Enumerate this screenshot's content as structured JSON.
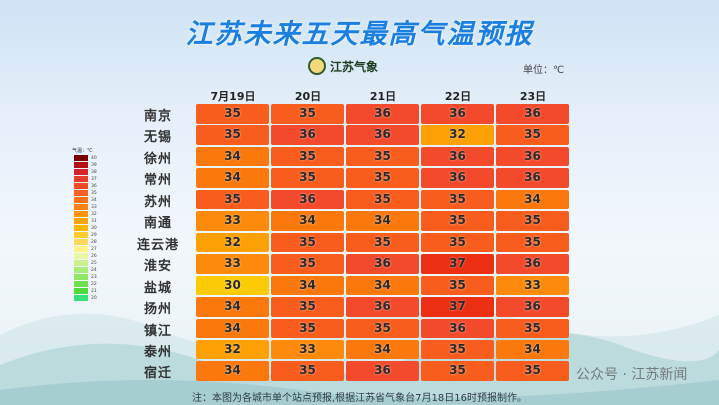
{
  "title": "江苏未来五天最高气温预报",
  "logo_text": "江苏气象",
  "unit": "单位：℃",
  "legend": {
    "title": "气温：℃",
    "labels": [
      "40",
      "39",
      "38",
      "37",
      "36",
      "35",
      "34",
      "33",
      "32",
      "31",
      "30",
      "29",
      "28",
      "27",
      "26",
      "25",
      "24",
      "23",
      "22",
      "21",
      "20"
    ],
    "colors": [
      "#7a0000",
      "#b50f16",
      "#d6222a",
      "#e83a2a",
      "#f04a25",
      "#f76020",
      "#fa7118",
      "#fb8212",
      "#fd920c",
      "#fea508",
      "#ffb800",
      "#ffcc30",
      "#ffd860",
      "#fff38a",
      "#e8f7a0",
      "#c9f28e",
      "#aaee7a",
      "#8ee866",
      "#6de04f",
      "#4ed93c",
      "#36e07a"
    ]
  },
  "columns": [
    "7月19日",
    "20日",
    "21日",
    "22日",
    "23日"
  ],
  "rows": [
    {
      "city": "南京",
      "values": [
        35,
        35,
        36,
        36,
        36
      ]
    },
    {
      "city": "无锡",
      "values": [
        35,
        36,
        36,
        32,
        35
      ]
    },
    {
      "city": "徐州",
      "values": [
        34,
        35,
        35,
        36,
        36
      ]
    },
    {
      "city": "常州",
      "values": [
        34,
        35,
        35,
        36,
        36
      ]
    },
    {
      "city": "苏州",
      "values": [
        35,
        36,
        35,
        35,
        34
      ]
    },
    {
      "city": "南通",
      "values": [
        33,
        34,
        34,
        35,
        35
      ]
    },
    {
      "city": "连云港",
      "values": [
        32,
        35,
        35,
        35,
        35
      ]
    },
    {
      "city": "淮安",
      "values": [
        33,
        35,
        36,
        37,
        36
      ]
    },
    {
      "city": "盐城",
      "values": [
        30,
        34,
        34,
        35,
        33
      ]
    },
    {
      "city": "扬州",
      "values": [
        34,
        35,
        36,
        37,
        36
      ]
    },
    {
      "city": "镇江",
      "values": [
        34,
        35,
        35,
        36,
        35
      ]
    },
    {
      "city": "泰州",
      "values": [
        32,
        33,
        34,
        35,
        34
      ]
    },
    {
      "city": "宿迁",
      "values": [
        34,
        35,
        36,
        35,
        35
      ]
    }
  ],
  "cell_colors": {
    "30": "#fccb05",
    "31": "#fdb400",
    "32": "#fca005",
    "33": "#fd8a0a",
    "34": "#fb780d",
    "35": "#f95d1e",
    "36": "#f44a2c",
    "37": "#ec2e12"
  },
  "note": "注：本图为各城市单个站点预报,根据江苏省气象台7月18日16时预报制作。",
  "watermark": "公众号 · 江苏新闻"
}
